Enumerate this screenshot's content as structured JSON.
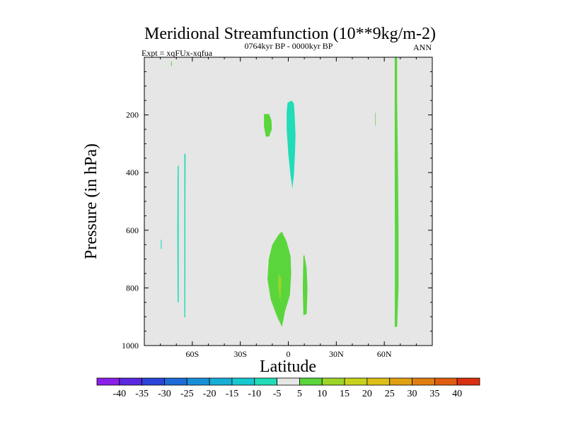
{
  "chart_data": {
    "type": "contour",
    "title": "Meridional Streamfunction (10**9kg/m-2)",
    "left_subtitle": "Expt = xqFUx-xqfua",
    "center_subtitle": "0764kyr BP - 0000kyr BP",
    "right_subtitle": "ANN",
    "xlabel": "Latitude",
    "ylabel": "Pressure (in hPa)",
    "xlim": [
      -90,
      90
    ],
    "ylim": [
      1000,
      0
    ],
    "xticks": [
      {
        "value": -60,
        "label": "60S"
      },
      {
        "value": -30,
        "label": "30S"
      },
      {
        "value": 0,
        "label": "0"
      },
      {
        "value": 30,
        "label": "30N"
      },
      {
        "value": 60,
        "label": "60N"
      }
    ],
    "yticks": [
      {
        "value": 200,
        "label": "200"
      },
      {
        "value": 400,
        "label": "400"
      },
      {
        "value": 600,
        "label": "600"
      },
      {
        "value": 800,
        "label": "800"
      },
      {
        "value": 1000,
        "label": "1000"
      }
    ],
    "colorbar": {
      "labels": [
        "-40",
        "-35",
        "-30",
        "-25",
        "-20",
        "-15",
        "-10",
        "-5",
        "5",
        "10",
        "15",
        "20",
        "25",
        "30",
        "35",
        "40"
      ],
      "colors": [
        "#8b1ee8",
        "#5a28e0",
        "#2a45d8",
        "#1d6bd6",
        "#1890d8",
        "#16aed4",
        "#16c8d0",
        "#22dcb8",
        "#e6e6e6",
        "#5ad63c",
        "#9cd428",
        "#c8d21c",
        "#dcc018",
        "#e0a012",
        "#e07e10",
        "#e05c10",
        "#d83010"
      ]
    },
    "regions": [
      {
        "level": "-5 to -10",
        "color": "#22dcb8",
        "points": [
          [
            -0.5,
            158
          ],
          [
            2,
            150
          ],
          [
            3.5,
            160
          ],
          [
            4,
            200
          ],
          [
            4.5,
            270
          ],
          [
            4.2,
            330
          ],
          [
            3.5,
            410
          ],
          [
            2.5,
            455
          ],
          [
            1.3,
            405
          ],
          [
            0,
            335
          ],
          [
            -1,
            250
          ],
          [
            -1,
            190
          ]
        ]
      },
      {
        "level": "-5 to -10",
        "color": "#22dcb8",
        "points": [
          [
            -65,
            335
          ],
          [
            -64.2,
            335
          ],
          [
            -64.3,
            500
          ],
          [
            -64.3,
            700
          ],
          [
            -64.4,
            902
          ],
          [
            -65,
            902
          ],
          [
            -65,
            700
          ],
          [
            -65,
            500
          ]
        ]
      },
      {
        "level": "-5 to -10",
        "color": "#22dcb8",
        "points": [
          [
            -69.2,
            377
          ],
          [
            -68.5,
            377
          ],
          [
            -68.5,
            600
          ],
          [
            -68.5,
            850
          ],
          [
            -69.2,
            850
          ],
          [
            -69.4,
            600
          ]
        ]
      },
      {
        "level": "-5 to -10",
        "color": "#22dcb8",
        "points": [
          [
            -79.7,
            633
          ],
          [
            -79.2,
            633
          ],
          [
            -79.2,
            665
          ],
          [
            -79.7,
            665
          ]
        ]
      },
      {
        "level": "5 to 10",
        "color": "#5ad63c",
        "points": [
          [
            66.5,
            0
          ],
          [
            68,
            0
          ],
          [
            68,
            150
          ],
          [
            68.6,
            400
          ],
          [
            68.9,
            600
          ],
          [
            68.9,
            800
          ],
          [
            68,
            935
          ],
          [
            66.5,
            935
          ],
          [
            66.6,
            800
          ],
          [
            66.6,
            600
          ],
          [
            66.5,
            400
          ],
          [
            66.5,
            150
          ]
        ]
      },
      {
        "level": "5 to 10",
        "color": "#5ad63c",
        "points": [
          [
            -15.2,
            197
          ],
          [
            -12,
            197
          ],
          [
            -10.5,
            220
          ],
          [
            -10.3,
            250
          ],
          [
            -12,
            275
          ],
          [
            -14,
            275
          ],
          [
            -15.2,
            240
          ]
        ]
      },
      {
        "level": "5 to 10",
        "color": "#5ad63c",
        "points": [
          [
            -6,
            615
          ],
          [
            -4,
            605
          ],
          [
            -1,
            640
          ],
          [
            1.4,
            690
          ],
          [
            1.8,
            750
          ],
          [
            1,
            825
          ],
          [
            -2,
            880
          ],
          [
            -4,
            935
          ],
          [
            -7,
            900
          ],
          [
            -11,
            840
          ],
          [
            -13,
            770
          ],
          [
            -12.2,
            700
          ],
          [
            -10,
            650
          ]
        ]
      },
      {
        "level": "5 to 10",
        "color": "#5ad63c",
        "points": [
          [
            9.4,
            690
          ],
          [
            10,
            685
          ],
          [
            11.4,
            730
          ],
          [
            12,
            800
          ],
          [
            11.5,
            890
          ],
          [
            9.4,
            895
          ],
          [
            9,
            800
          ]
        ]
      },
      {
        "level": "5 to 10",
        "color": "#5ad63c",
        "points": [
          [
            54.3,
            195
          ],
          [
            54.6,
            190
          ],
          [
            54.6,
            235
          ],
          [
            54.3,
            240
          ]
        ]
      },
      {
        "level": "5 to 10",
        "color": "#5ad63c",
        "points": [
          [
            -73.3,
            15
          ],
          [
            -72.8,
            15
          ],
          [
            -72.8,
            30
          ],
          [
            -73.3,
            30
          ]
        ]
      },
      {
        "level": "10 to 15",
        "color": "#9cd428",
        "points": [
          [
            -6,
            750
          ],
          [
            -4.3,
            770
          ],
          [
            -5,
            850
          ],
          [
            -6.5,
            790
          ]
        ]
      }
    ]
  }
}
